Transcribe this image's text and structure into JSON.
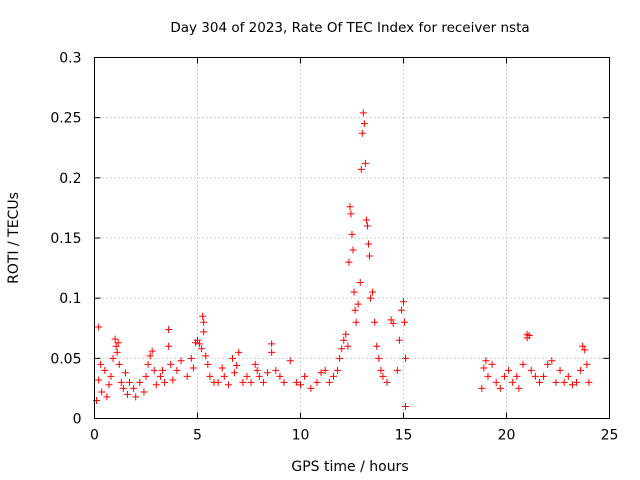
{
  "chart_data": {
    "type": "scatter",
    "title": "Day 304 of 2023, Rate Of TEC Index for receiver nsta",
    "xlabel": "GPS time / hours",
    "ylabel": "ROTI / TECUs",
    "xlim": [
      0,
      25
    ],
    "ylim": [
      0,
      0.3
    ],
    "x_ticks": [
      0,
      5,
      10,
      15,
      20,
      25
    ],
    "x_tick_labels": [
      "0",
      "5",
      "10",
      "15",
      "20",
      "25"
    ],
    "y_ticks": [
      0,
      0.05,
      0.1,
      0.15,
      0.2,
      0.25,
      0.3
    ],
    "y_tick_labels": [
      "0",
      "0.05",
      "0.1",
      "0.15",
      "0.2",
      "0.25",
      "0.3"
    ],
    "grid": true,
    "marker": "+",
    "series": [
      {
        "name": "ROTI",
        "color": "#ff0000",
        "points": [
          [
            0.1,
            0.015
          ],
          [
            0.2,
            0.032
          ],
          [
            0.2,
            0.076
          ],
          [
            0.3,
            0.045
          ],
          [
            0.35,
            0.022
          ],
          [
            0.5,
            0.04
          ],
          [
            0.6,
            0.018
          ],
          [
            0.7,
            0.028
          ],
          [
            0.8,
            0.035
          ],
          [
            0.9,
            0.05
          ],
          [
            1.0,
            0.066
          ],
          [
            1.05,
            0.06
          ],
          [
            1.1,
            0.055
          ],
          [
            1.15,
            0.063
          ],
          [
            1.2,
            0.045
          ],
          [
            1.3,
            0.03
          ],
          [
            1.4,
            0.025
          ],
          [
            1.5,
            0.038
          ],
          [
            1.6,
            0.02
          ],
          [
            1.7,
            0.03
          ],
          [
            1.9,
            0.025
          ],
          [
            2.0,
            0.018
          ],
          [
            2.2,
            0.03
          ],
          [
            2.4,
            0.022
          ],
          [
            2.5,
            0.035
          ],
          [
            2.6,
            0.045
          ],
          [
            2.7,
            0.052
          ],
          [
            2.8,
            0.056
          ],
          [
            2.9,
            0.04
          ],
          [
            3.0,
            0.028
          ],
          [
            3.2,
            0.035
          ],
          [
            3.3,
            0.04
          ],
          [
            3.4,
            0.03
          ],
          [
            3.6,
            0.074
          ],
          [
            3.6,
            0.06
          ],
          [
            3.7,
            0.045
          ],
          [
            3.8,
            0.032
          ],
          [
            4.0,
            0.04
          ],
          [
            4.2,
            0.048
          ],
          [
            4.5,
            0.035
          ],
          [
            4.7,
            0.05
          ],
          [
            4.8,
            0.042
          ],
          [
            4.9,
            0.063
          ],
          [
            5.0,
            0.065
          ],
          [
            5.1,
            0.062
          ],
          [
            5.2,
            0.058
          ],
          [
            5.25,
            0.085
          ],
          [
            5.3,
            0.08
          ],
          [
            5.3,
            0.072
          ],
          [
            5.4,
            0.052
          ],
          [
            5.5,
            0.045
          ],
          [
            5.6,
            0.035
          ],
          [
            5.8,
            0.03
          ],
          [
            6.0,
            0.03
          ],
          [
            6.2,
            0.042
          ],
          [
            6.3,
            0.035
          ],
          [
            6.5,
            0.028
          ],
          [
            6.7,
            0.05
          ],
          [
            6.8,
            0.038
          ],
          [
            6.9,
            0.044
          ],
          [
            7.0,
            0.055
          ],
          [
            7.2,
            0.03
          ],
          [
            7.4,
            0.035
          ],
          [
            7.6,
            0.03
          ],
          [
            7.8,
            0.045
          ],
          [
            7.9,
            0.04
          ],
          [
            8.0,
            0.035
          ],
          [
            8.2,
            0.03
          ],
          [
            8.4,
            0.038
          ],
          [
            8.6,
            0.062
          ],
          [
            8.6,
            0.055
          ],
          [
            8.8,
            0.04
          ],
          [
            9.0,
            0.035
          ],
          [
            9.2,
            0.03
          ],
          [
            9.5,
            0.048
          ],
          [
            9.8,
            0.03
          ],
          [
            10.0,
            0.028
          ],
          [
            10.2,
            0.035
          ],
          [
            10.5,
            0.025
          ],
          [
            10.8,
            0.03
          ],
          [
            11.0,
            0.038
          ],
          [
            11.2,
            0.04
          ],
          [
            11.4,
            0.03
          ],
          [
            11.6,
            0.035
          ],
          [
            11.8,
            0.04
          ],
          [
            11.9,
            0.05
          ],
          [
            12.0,
            0.058
          ],
          [
            12.1,
            0.065
          ],
          [
            12.2,
            0.07
          ],
          [
            12.3,
            0.06
          ],
          [
            12.35,
            0.13
          ],
          [
            12.4,
            0.176
          ],
          [
            12.45,
            0.17
          ],
          [
            12.5,
            0.153
          ],
          [
            12.55,
            0.14
          ],
          [
            12.6,
            0.105
          ],
          [
            12.65,
            0.09
          ],
          [
            12.7,
            0.08
          ],
          [
            12.8,
            0.095
          ],
          [
            12.9,
            0.113
          ],
          [
            12.95,
            0.207
          ],
          [
            13.0,
            0.237
          ],
          [
            13.05,
            0.254
          ],
          [
            13.1,
            0.245
          ],
          [
            13.15,
            0.212
          ],
          [
            13.2,
            0.165
          ],
          [
            13.25,
            0.16
          ],
          [
            13.3,
            0.145
          ],
          [
            13.35,
            0.135
          ],
          [
            13.4,
            0.1
          ],
          [
            13.5,
            0.105
          ],
          [
            13.6,
            0.08
          ],
          [
            13.7,
            0.06
          ],
          [
            13.8,
            0.05
          ],
          [
            13.9,
            0.04
          ],
          [
            14.0,
            0.035
          ],
          [
            14.2,
            0.03
          ],
          [
            14.4,
            0.082
          ],
          [
            14.5,
            0.079
          ],
          [
            14.7,
            0.04
          ],
          [
            14.8,
            0.065
          ],
          [
            14.9,
            0.09
          ],
          [
            15.0,
            0.097
          ],
          [
            15.05,
            0.08
          ],
          [
            15.1,
            0.05
          ],
          [
            15.1,
            0.01
          ],
          [
            18.8,
            0.025
          ],
          [
            18.9,
            0.042
          ],
          [
            19.0,
            0.048
          ],
          [
            19.1,
            0.035
          ],
          [
            19.3,
            0.045
          ],
          [
            19.5,
            0.03
          ],
          [
            19.7,
            0.025
          ],
          [
            19.9,
            0.035
          ],
          [
            20.1,
            0.04
          ],
          [
            20.3,
            0.03
          ],
          [
            20.5,
            0.035
          ],
          [
            20.6,
            0.025
          ],
          [
            20.8,
            0.045
          ],
          [
            21.0,
            0.07
          ],
          [
            21.0,
            0.067
          ],
          [
            21.1,
            0.069
          ],
          [
            21.2,
            0.04
          ],
          [
            21.4,
            0.035
          ],
          [
            21.6,
            0.03
          ],
          [
            21.8,
            0.035
          ],
          [
            22.0,
            0.045
          ],
          [
            22.2,
            0.048
          ],
          [
            22.4,
            0.03
          ],
          [
            22.6,
            0.04
          ],
          [
            22.8,
            0.03
          ],
          [
            23.0,
            0.035
          ],
          [
            23.2,
            0.028
          ],
          [
            23.4,
            0.03
          ],
          [
            23.6,
            0.04
          ],
          [
            23.7,
            0.06
          ],
          [
            23.8,
            0.057
          ],
          [
            23.9,
            0.045
          ],
          [
            24.0,
            0.03
          ]
        ]
      }
    ]
  }
}
